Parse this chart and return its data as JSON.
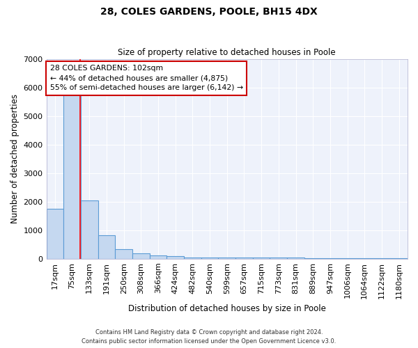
{
  "title1": "28, COLES GARDENS, POOLE, BH15 4DX",
  "title2": "Size of property relative to detached houses in Poole",
  "xlabel": "Distribution of detached houses by size in Poole",
  "ylabel": "Number of detached properties",
  "categories": [
    "17sqm",
    "75sqm",
    "133sqm",
    "191sqm",
    "250sqm",
    "308sqm",
    "366sqm",
    "424sqm",
    "482sqm",
    "540sqm",
    "599sqm",
    "657sqm",
    "715sqm",
    "773sqm",
    "831sqm",
    "889sqm",
    "947sqm",
    "1006sqm",
    "1064sqm",
    "1122sqm",
    "1180sqm"
  ],
  "values": [
    1750,
    5800,
    2050,
    830,
    330,
    190,
    110,
    90,
    55,
    50,
    55,
    50,
    55,
    45,
    35,
    28,
    20,
    15,
    10,
    10,
    10
  ],
  "bar_color": "#c5d8f0",
  "bar_edge_color": "#5b9bd5",
  "bar_edge_width": 0.8,
  "red_line_x": 1.45,
  "annotation_title": "28 COLES GARDENS: 102sqm",
  "annotation_line1": "← 44% of detached houses are smaller (4,875)",
  "annotation_line2": "55% of semi-detached houses are larger (6,142) →",
  "annotation_box_color": "#cc0000",
  "background_color": "#eef2fb",
  "grid_color": "#ffffff",
  "footer1": "Contains HM Land Registry data © Crown copyright and database right 2024.",
  "footer2": "Contains public sector information licensed under the Open Government Licence v3.0.",
  "ylim": [
    0,
    7000
  ],
  "yticks": [
    0,
    1000,
    2000,
    3000,
    4000,
    5000,
    6000,
    7000
  ]
}
